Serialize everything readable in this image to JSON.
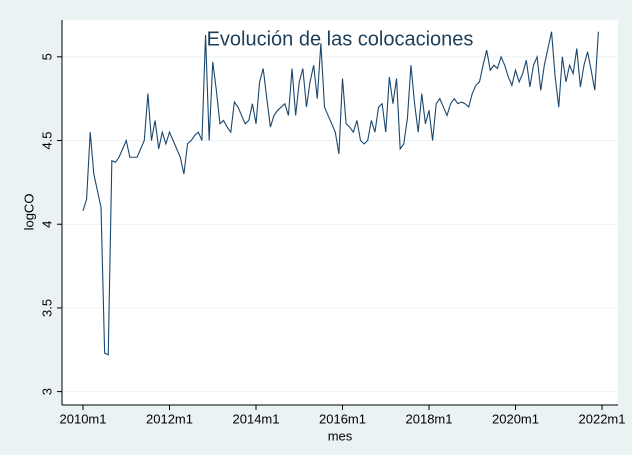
{
  "chart_data": {
    "type": "line",
    "title": "Evolución de las colocaciones",
    "x_label": "mes",
    "y_label": "logCO",
    "x": [
      "2010m1",
      "2010m2",
      "2010m3",
      "2010m4",
      "2010m5",
      "2010m6",
      "2010m7",
      "2010m8",
      "2010m9",
      "2010m10",
      "2010m11",
      "2010m12",
      "2011m1",
      "2011m2",
      "2011m3",
      "2011m4",
      "2011m5",
      "2011m6",
      "2011m7",
      "2011m8",
      "2011m9",
      "2011m10",
      "2011m11",
      "2011m12",
      "2012m1",
      "2012m2",
      "2012m3",
      "2012m4",
      "2012m5",
      "2012m6",
      "2012m7",
      "2012m8",
      "2012m9",
      "2012m10",
      "2012m11",
      "2012m12",
      "2013m1",
      "2013m2",
      "2013m3",
      "2013m4",
      "2013m5",
      "2013m6",
      "2013m7",
      "2013m8",
      "2013m9",
      "2013m10",
      "2013m11",
      "2013m12",
      "2014m1",
      "2014m2",
      "2014m3",
      "2014m4",
      "2014m5",
      "2014m6",
      "2014m7",
      "2014m8",
      "2014m9",
      "2014m10",
      "2014m11",
      "2014m12",
      "2015m1",
      "2015m2",
      "2015m3",
      "2015m4",
      "2015m5",
      "2015m6",
      "2015m7",
      "2015m8",
      "2015m9",
      "2015m10",
      "2015m11",
      "2015m12",
      "2016m1",
      "2016m2",
      "2016m3",
      "2016m4",
      "2016m5",
      "2016m6",
      "2016m7",
      "2016m8",
      "2016m9",
      "2016m10",
      "2016m11",
      "2016m12",
      "2017m1",
      "2017m2",
      "2017m3",
      "2017m4",
      "2017m5",
      "2017m6",
      "2017m7",
      "2017m8",
      "2017m9",
      "2017m10",
      "2017m11",
      "2017m12",
      "2018m1",
      "2018m2",
      "2018m3",
      "2018m4",
      "2018m5",
      "2018m6",
      "2018m7",
      "2018m8",
      "2018m9",
      "2018m10",
      "2018m11",
      "2018m12",
      "2019m1",
      "2019m2",
      "2019m3",
      "2019m4",
      "2019m5",
      "2019m6",
      "2019m7",
      "2019m8",
      "2019m9",
      "2019m10",
      "2019m11",
      "2019m12",
      "2020m1",
      "2020m2",
      "2020m3",
      "2020m4",
      "2020m5",
      "2020m6",
      "2020m7",
      "2020m8",
      "2020m9",
      "2020m10",
      "2020m11",
      "2020m12",
      "2021m1",
      "2021m2",
      "2021m3",
      "2021m4",
      "2021m5",
      "2021m6",
      "2021m7",
      "2021m8",
      "2021m9",
      "2021m10",
      "2021m11",
      "2021m12"
    ],
    "series": [
      {
        "name": "logCO",
        "color": "#1a476f",
        "values": [
          4.08,
          4.15,
          4.55,
          4.3,
          4.2,
          4.1,
          3.23,
          3.22,
          4.38,
          4.37,
          4.4,
          4.45,
          4.5,
          4.4,
          4.4,
          4.4,
          4.45,
          4.5,
          4.78,
          4.5,
          4.62,
          4.45,
          4.55,
          4.48,
          4.55,
          4.5,
          4.45,
          4.4,
          4.3,
          4.48,
          4.5,
          4.53,
          4.55,
          4.5,
          5.13,
          4.5,
          4.97,
          4.8,
          4.6,
          4.62,
          4.58,
          4.55,
          4.73,
          4.7,
          4.65,
          4.6,
          4.62,
          4.72,
          4.6,
          4.85,
          4.93,
          4.75,
          4.58,
          4.65,
          4.68,
          4.7,
          4.72,
          4.65,
          4.93,
          4.65,
          4.85,
          4.93,
          4.7,
          4.85,
          4.95,
          4.75,
          5.08,
          4.7,
          4.65,
          4.6,
          4.55,
          4.42,
          4.87,
          4.6,
          4.58,
          4.55,
          4.62,
          4.5,
          4.48,
          4.5,
          4.62,
          4.55,
          4.7,
          4.72,
          4.55,
          4.88,
          4.72,
          4.87,
          4.45,
          4.48,
          4.63,
          4.95,
          4.72,
          4.55,
          4.78,
          4.6,
          4.68,
          4.5,
          4.72,
          4.75,
          4.7,
          4.65,
          4.72,
          4.75,
          4.72,
          4.73,
          4.72,
          4.7,
          4.78,
          4.83,
          4.85,
          4.95,
          5.04,
          4.92,
          4.95,
          4.93,
          5.0,
          4.95,
          4.88,
          4.83,
          4.92,
          4.85,
          4.9,
          4.98,
          4.82,
          4.95,
          5.0,
          4.8,
          4.95,
          5.05,
          5.15,
          4.88,
          4.7,
          5.0,
          4.85,
          4.95,
          4.9,
          5.05,
          4.82,
          4.95,
          5.03,
          4.92,
          4.8,
          5.15
        ]
      }
    ],
    "xlim": [
      "2010m1",
      "2022m1"
    ],
    "xticks": [
      "2010m1",
      "2012m1",
      "2014m1",
      "2016m1",
      "2018m1",
      "2020m1",
      "2022m1"
    ],
    "ylim": [
      2.92,
      5.22
    ],
    "yticks": [
      3,
      3.5,
      4,
      4.5,
      5
    ],
    "grid": true
  }
}
